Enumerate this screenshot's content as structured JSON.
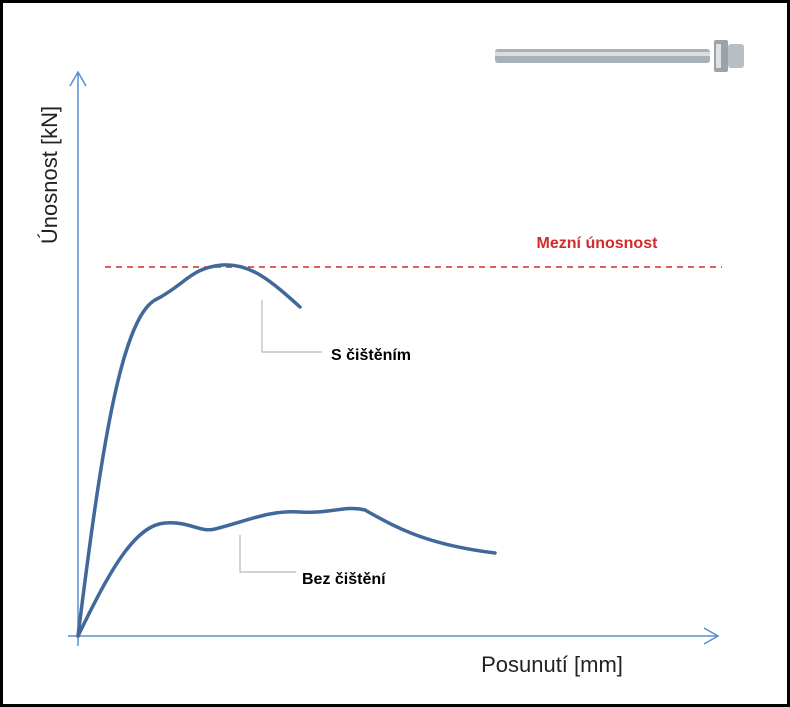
{
  "y_axis_label": "Únosnost [kN]",
  "x_axis_label": "Posunutí [mm]",
  "limit_label": "Mezní únosnost",
  "curves": [
    {
      "label": "S čištěním"
    },
    {
      "label": "Bez čištění"
    }
  ]
}
